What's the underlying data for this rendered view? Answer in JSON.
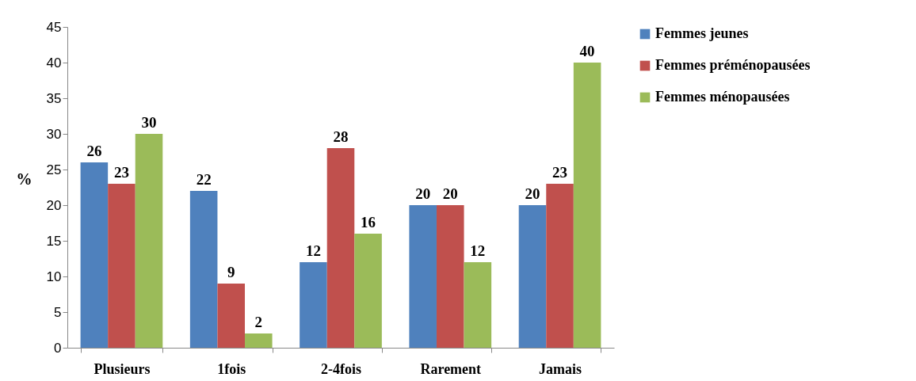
{
  "chart_data": {
    "type": "bar",
    "ylabel": "%",
    "categories": [
      "Plusieurs",
      "1fois",
      "2-4fois",
      "Rarement",
      "Jamais"
    ],
    "series": [
      {
        "name": "Femmes jeunes",
        "color": "#4f81bd",
        "values": [
          26,
          22,
          12,
          20,
          20
        ]
      },
      {
        "name": "Femmes préménopausées",
        "color": "#c0504d",
        "values": [
          23,
          9,
          28,
          20,
          23
        ]
      },
      {
        "name": "Femmes ménopausées",
        "color": "#9bbb59",
        "values": [
          30,
          2,
          16,
          12,
          40
        ]
      }
    ],
    "ylim": [
      0,
      45
    ],
    "yticks": [
      0,
      5,
      10,
      15,
      20,
      25,
      30,
      35,
      40,
      45
    ],
    "data_labels": true,
    "legend": "right"
  }
}
